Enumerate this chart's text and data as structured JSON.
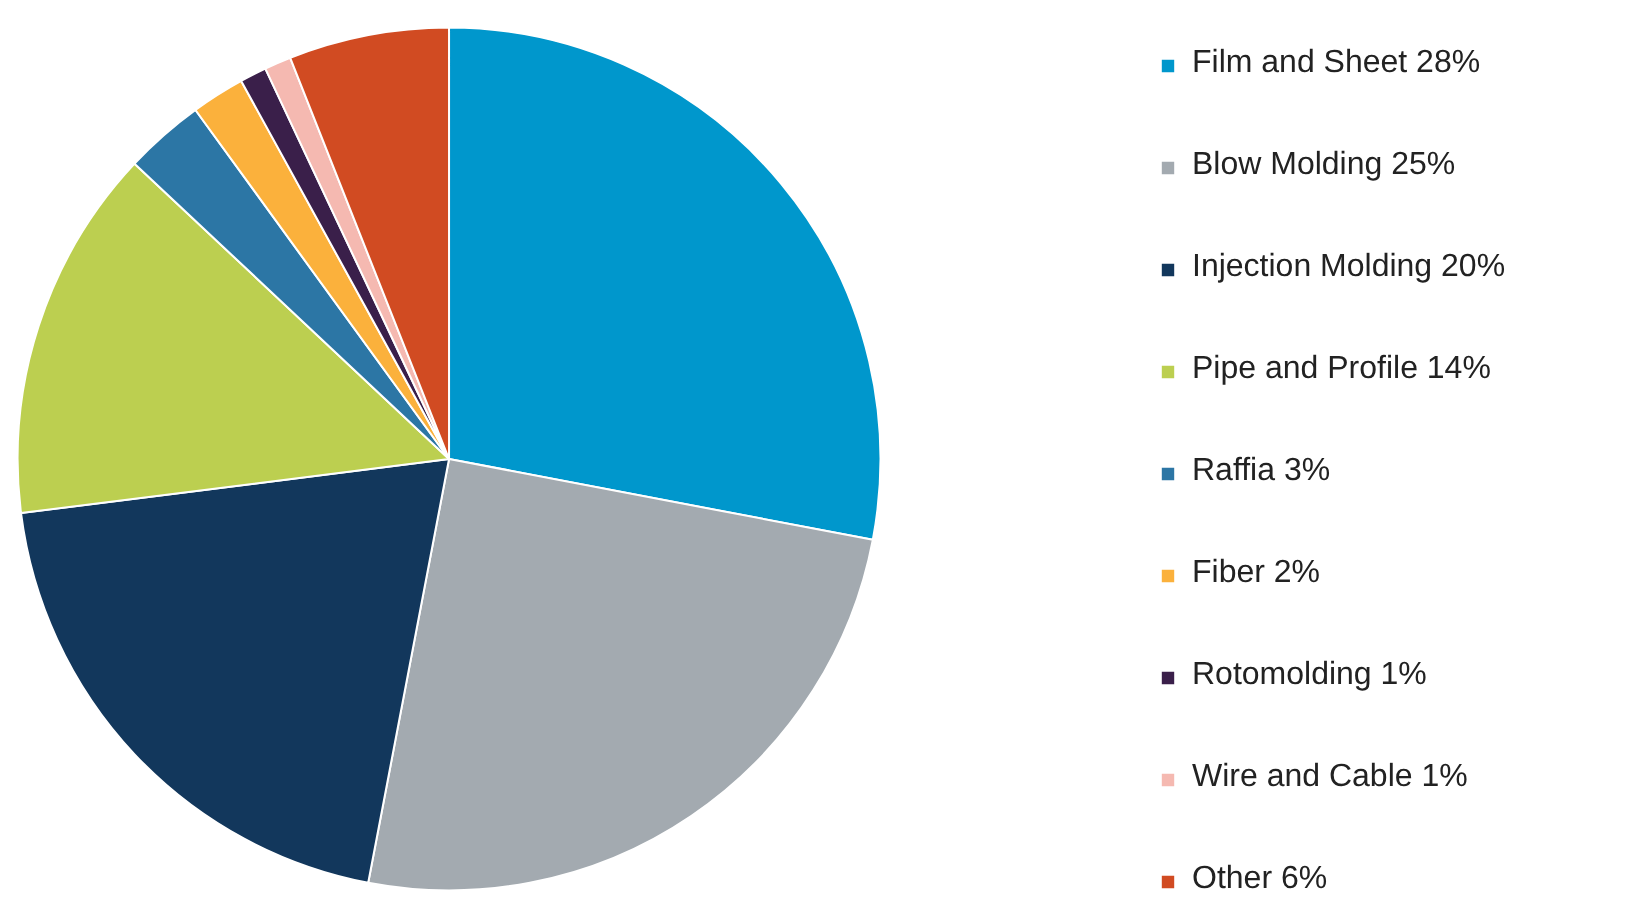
{
  "chart_data": {
    "type": "pie",
    "categories": [
      "Film and Sheet 28%",
      "Blow Molding 25%",
      "Injection Molding 20%",
      "Pipe and Profile 14%",
      "Raffia 3%",
      "Fiber 2%",
      "Rotomolding 1%",
      "Wire and Cable 1%",
      "Other 6%"
    ],
    "values": [
      28,
      25,
      20,
      14,
      3,
      2,
      1,
      1,
      6
    ],
    "colors": [
      "#0097cc",
      "#a3aab0",
      "#12375c",
      "#bccf50",
      "#2c76a5",
      "#fbb13c",
      "#3a1f4a",
      "#f5b9b1",
      "#d14b22"
    ],
    "legend": "right"
  }
}
